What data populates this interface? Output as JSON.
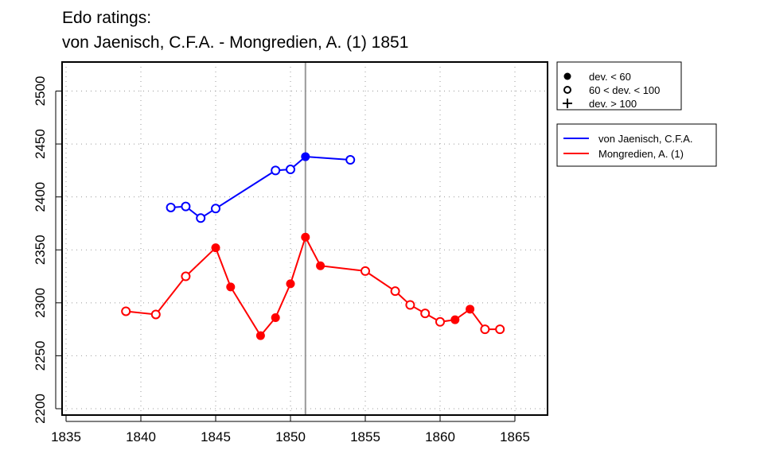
{
  "chart_data": {
    "type": "line",
    "title_line1": "Edo ratings:",
    "title_line2": "von Jaenisch, C.F.A. - Mongredien, A. (1) 1851",
    "xlabel": "",
    "ylabel": "",
    "xlim": [
      1835,
      1867
    ],
    "ylim": [
      2195,
      2528
    ],
    "x_ticks": [
      1835,
      1840,
      1845,
      1850,
      1855,
      1860,
      1865
    ],
    "y_ticks": [
      2200,
      2250,
      2300,
      2350,
      2400,
      2450,
      2500
    ],
    "grid": true,
    "vertical_marker_year": 1851,
    "marker_legend": [
      {
        "symbol": "filled",
        "label": "dev. < 60"
      },
      {
        "symbol": "open",
        "label": "60 < dev. < 100"
      },
      {
        "symbol": "plus",
        "label": "dev. > 100"
      }
    ],
    "series": [
      {
        "name": "von Jaenisch, C.F.A.",
        "color": "#0000ff",
        "points": [
          {
            "x": 1842,
            "y": 2390,
            "m": "open"
          },
          {
            "x": 1843,
            "y": 2391,
            "m": "open"
          },
          {
            "x": 1844,
            "y": 2380,
            "m": "open"
          },
          {
            "x": 1845,
            "y": 2389,
            "m": "open"
          },
          {
            "x": 1849,
            "y": 2425,
            "m": "open"
          },
          {
            "x": 1850,
            "y": 2426,
            "m": "open"
          },
          {
            "x": 1851,
            "y": 2438,
            "m": "filled"
          },
          {
            "x": 1854,
            "y": 2435,
            "m": "open"
          }
        ]
      },
      {
        "name": "Mongredien, A. (1)",
        "color": "#ff0000",
        "points": [
          {
            "x": 1839,
            "y": 2292,
            "m": "open"
          },
          {
            "x": 1841,
            "y": 2289,
            "m": "open"
          },
          {
            "x": 1843,
            "y": 2325,
            "m": "open"
          },
          {
            "x": 1845,
            "y": 2352,
            "m": "filled"
          },
          {
            "x": 1846,
            "y": 2315,
            "m": "filled"
          },
          {
            "x": 1848,
            "y": 2269,
            "m": "filled"
          },
          {
            "x": 1849,
            "y": 2286,
            "m": "filled"
          },
          {
            "x": 1850,
            "y": 2318,
            "m": "filled"
          },
          {
            "x": 1851,
            "y": 2362,
            "m": "filled"
          },
          {
            "x": 1852,
            "y": 2335,
            "m": "filled"
          },
          {
            "x": 1855,
            "y": 2330,
            "m": "open"
          },
          {
            "x": 1857,
            "y": 2311,
            "m": "open"
          },
          {
            "x": 1858,
            "y": 2298,
            "m": "open"
          },
          {
            "x": 1859,
            "y": 2290,
            "m": "open"
          },
          {
            "x": 1860,
            "y": 2282,
            "m": "open"
          },
          {
            "x": 1861,
            "y": 2284,
            "m": "filled"
          },
          {
            "x": 1862,
            "y": 2294,
            "m": "filled"
          },
          {
            "x": 1863,
            "y": 2275,
            "m": "open"
          },
          {
            "x": 1864,
            "y": 2275,
            "m": "open"
          }
        ]
      }
    ]
  }
}
